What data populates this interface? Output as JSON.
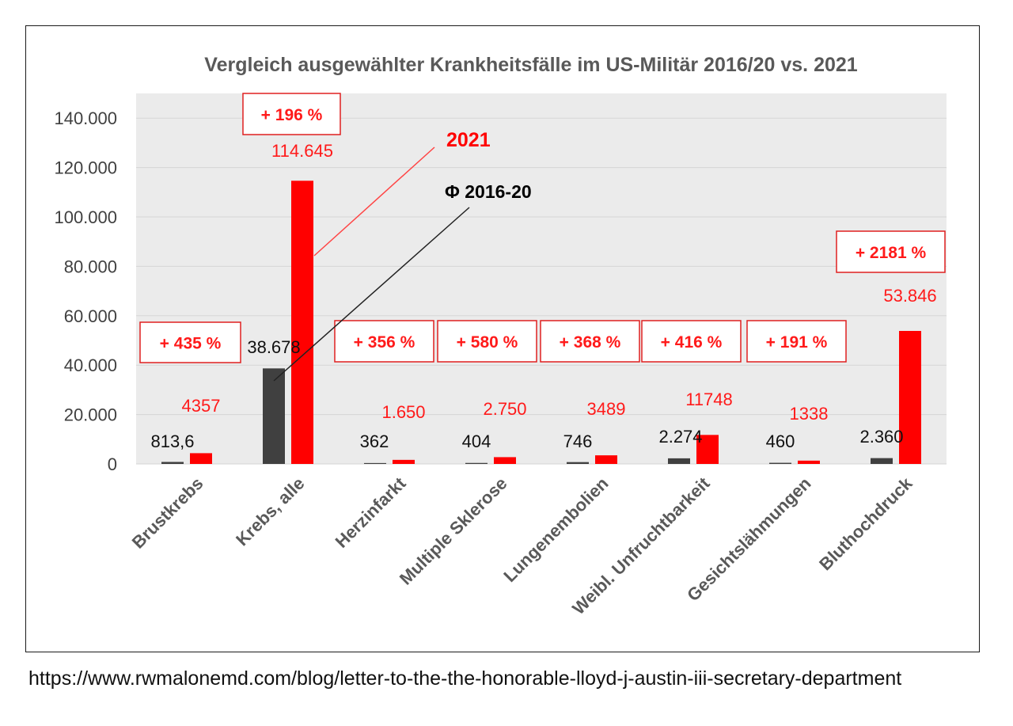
{
  "chart_data": {
    "type": "bar",
    "title": "Vergleich ausgewählter Krankheitsfälle im US-Militär 2016/20 vs. 2021",
    "xlabel": "",
    "ylabel": "",
    "ylim": [
      0,
      150000
    ],
    "grid": true,
    "y_ticks": [
      {
        "value": 0,
        "label": "0"
      },
      {
        "value": 20000,
        "label": "20.000"
      },
      {
        "value": 40000,
        "label": "40.000"
      },
      {
        "value": 60000,
        "label": "60.000"
      },
      {
        "value": 80000,
        "label": "80.000"
      },
      {
        "value": 100000,
        "label": "100.000"
      },
      {
        "value": 120000,
        "label": "120.000"
      },
      {
        "value": 140000,
        "label": "140.000"
      }
    ],
    "categories": [
      "Brustkrebs",
      "Krebs, alle",
      "Herzinfarkt",
      "Multiple Sklerose",
      "Lungenembolien",
      "Weibl. Unfruchtbarkeit",
      "Gesichtslähmungen",
      "Bluthochdruck"
    ],
    "series": [
      {
        "name": "Φ 2016-20",
        "color": "#404040",
        "values": [
          813.6,
          38678,
          362,
          404,
          746,
          2274,
          460,
          2360
        ],
        "labels": [
          "813,6",
          "38.678",
          "362",
          "404",
          "746",
          "2.274",
          "460",
          "2.360"
        ]
      },
      {
        "name": "2021",
        "color": "#ff0000",
        "values": [
          4357,
          114645,
          1650,
          2750,
          3489,
          11748,
          1338,
          53846
        ],
        "labels": [
          "4357",
          "114.645",
          "1.650",
          "2.750",
          "3489",
          "11748",
          "1338",
          "53.846"
        ]
      }
    ],
    "increase_labels": [
      "+ 435 %",
      "+ 196 %",
      "+ 356 %",
      "+ 580 %",
      "+ 368 %",
      "+ 416 %",
      "+ 191 %",
      "+ 2181 %"
    ],
    "annotations": [
      {
        "text": "2021",
        "color": "#ff0000",
        "target_series": "2021",
        "target_category": "Krebs, alle"
      },
      {
        "text": "Φ 2016-20",
        "color": "#000000",
        "target_series": "Φ 2016-20",
        "target_category": "Krebs, alle"
      }
    ]
  },
  "source": {
    "url_text": "https://www.rwmalonemd.com/blog/letter-to-the-the-honorable-lloyd-j-austin-iii-secretary-department"
  }
}
